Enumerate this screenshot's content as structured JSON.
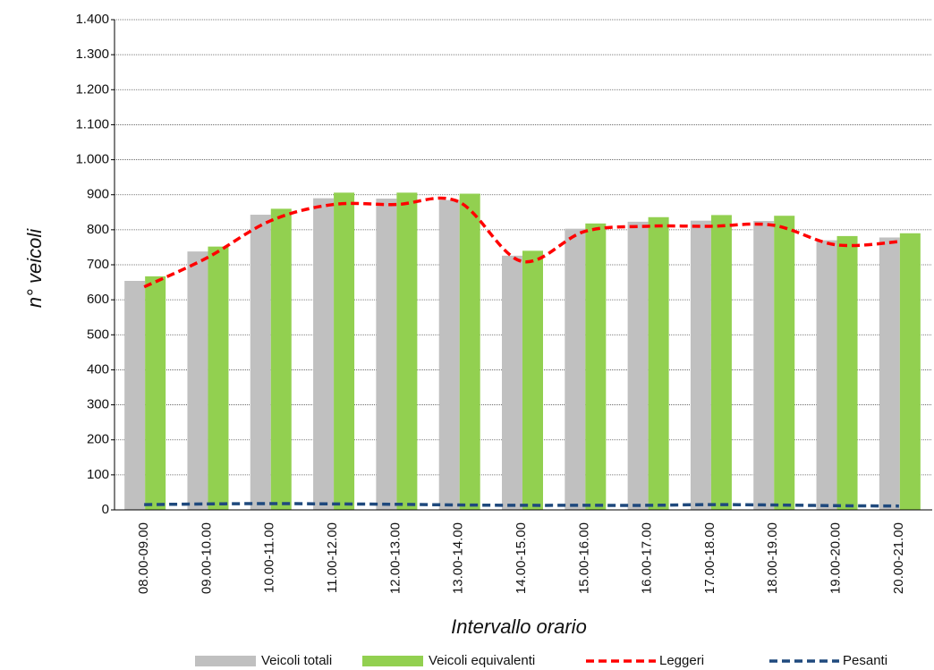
{
  "chart_data": {
    "type": "bar",
    "y_label": "n° veicoli",
    "x_label": "Intervallo orario",
    "categories": [
      "08.00-09.00",
      "09.00-10.00",
      "10.00-11.00",
      "11.00-12.00",
      "12.00-13.00",
      "13.00-14.00",
      "14.00-15.00",
      "15.00-16.00",
      "16.00-17.00",
      "17.00-18.00",
      "18.00-19.00",
      "19.00-20.00",
      "20.00-21.00"
    ],
    "series": [
      {
        "name": "Veicoli totali",
        "type": "bar",
        "color": "#c0c0c0",
        "values": [
          654,
          738,
          843,
          890,
          889,
          885,
          726,
          803,
          823,
          826,
          825,
          770,
          778
        ]
      },
      {
        "name": "Veicoli equivalenti",
        "type": "bar",
        "color": "#92d050",
        "values": [
          667,
          752,
          860,
          906,
          906,
          903,
          740,
          818,
          836,
          842,
          840,
          782,
          790
        ]
      },
      {
        "name": "Leggeri",
        "type": "line",
        "color": "#ff0000",
        "values": [
          637,
          720,
          825,
          872,
          872,
          880,
          710,
          795,
          810,
          810,
          813,
          757,
          766
        ]
      },
      {
        "name": "Pesanti",
        "type": "line",
        "color": "#1f497d",
        "values": [
          15,
          17,
          18,
          17,
          16,
          14,
          13,
          13,
          13,
          15,
          14,
          12,
          11
        ]
      }
    ],
    "ylim": [
      0,
      1400
    ],
    "yticks": [
      0,
      100,
      200,
      300,
      400,
      500,
      600,
      700,
      800,
      900,
      {
        "value": 1000,
        "label": "1.000"
      },
      {
        "value": 1100,
        "label": "1.100"
      },
      {
        "value": 1200,
        "label": "1.200"
      },
      {
        "value": 1300,
        "label": "1.300"
      },
      {
        "value": 1400,
        "label": "1.400"
      }
    ],
    "grid": true,
    "legend": "bottom"
  }
}
